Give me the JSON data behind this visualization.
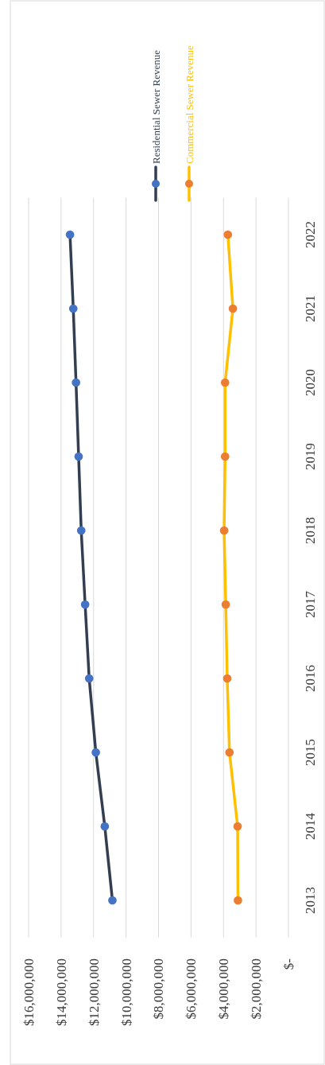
{
  "chart_data": {
    "type": "line",
    "orientation": "horizontal",
    "categories": [
      "2022",
      "2021",
      "2020",
      "2019",
      "2018",
      "2017",
      "2016",
      "2015",
      "2014",
      "2013"
    ],
    "series": [
      {
        "name": "Residential Sewer Revenue",
        "color": "#333f50",
        "colors": [
          "#4472c4",
          "#4472c4",
          "#4472c4",
          "#4472c4",
          "#4472c4",
          "#4472c4",
          "#4472c4",
          "#4472c4",
          "#4472c4",
          "#4472c4"
        ],
        "values": [
          13450000,
          13250000,
          13080000,
          12920000,
          12760000,
          12520000,
          12270000,
          11860000,
          11310000,
          10840000
        ]
      },
      {
        "name": "Commercial Sewer Revenue",
        "color": "#ffc000",
        "colors": [
          "#ed7d31",
          "#ed7d31",
          "#ed7d31",
          "#ed7d31",
          "#ed7d31",
          "#ed7d31",
          "#ed7d31",
          "#ed7d31",
          "#ed7d31",
          "#ed7d31"
        ],
        "values": [
          3730000,
          3420000,
          3900000,
          3900000,
          3960000,
          3860000,
          3770000,
          3630000,
          3130000,
          3110000
        ]
      }
    ],
    "xlim": [
      16000000,
      0
    ],
    "xticks": [
      {
        "value": 16000000,
        "label": "$16,000,000"
      },
      {
        "value": 14000000,
        "label": "$14,000,000"
      },
      {
        "value": 12000000,
        "label": "$12,000,000"
      },
      {
        "value": 10000000,
        "label": "$10,000,000"
      },
      {
        "value": 8000000,
        "label": "$8,000,000"
      },
      {
        "value": 6000000,
        "label": "$6,000,000"
      },
      {
        "value": 4000000,
        "label": "$4,000,000"
      },
      {
        "value": 2000000,
        "label": "$2,000,000"
      },
      {
        "value": 0,
        "label": "$-"
      }
    ],
    "grid": "x",
    "legend": "top",
    "marker": "circle",
    "line_style": "solid"
  }
}
